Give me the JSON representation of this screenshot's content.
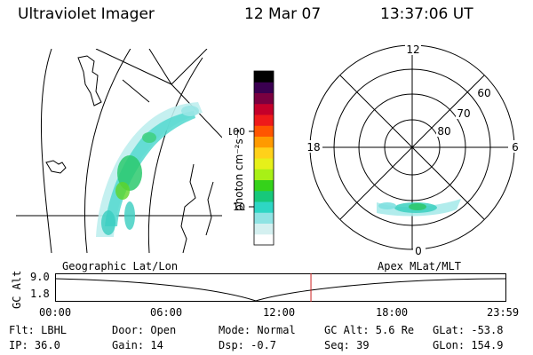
{
  "header": {
    "instrument": "Ultraviolet Imager",
    "date": "12 Mar 07",
    "time": "13:37:06 UT"
  },
  "colorbar": {
    "axis_label": "photon cm⁻²s⁻¹",
    "ticks": [
      "100",
      "10"
    ],
    "scale": "log",
    "colors": [
      "#ffffff",
      "#d4f0f0",
      "#8fe3e3",
      "#2ed6c4",
      "#17c87a",
      "#35d21a",
      "#a8f016",
      "#e6f01a",
      "#ffd11a",
      "#ff9a00",
      "#ff5500",
      "#ee1a1a",
      "#c4002a",
      "#7a0040",
      "#3a0050",
      "#000000"
    ]
  },
  "polar": {
    "mlt_labels": [
      "12",
      "18",
      "6",
      "0"
    ],
    "lat_labels": [
      "60",
      "70",
      "80"
    ]
  },
  "timeline": {
    "left_label": "Geographic Lat/Lon",
    "right_label": "Apex MLat/MLT",
    "yaxis_label": "GC Alt",
    "yticks": [
      "9.0",
      "1.8"
    ],
    "xticks": [
      "00:00",
      "06:00",
      "12:00",
      "18:00",
      "23:59"
    ],
    "current_time_fraction": 0.567,
    "cursor_color": "#cc2222"
  },
  "status": {
    "flt": "Flt: LBHL",
    "ip": "IP: 36.0",
    "door": "Door: Open",
    "gain": "Gain: 14",
    "mode": "Mode: Normal",
    "dsp": "Dsp:   -0.7",
    "gcalt": "GC Alt: 5.6 Re",
    "seq": "Seq: 39",
    "glat": "GLat: -53.8",
    "glon": "GLon: 154.9"
  }
}
